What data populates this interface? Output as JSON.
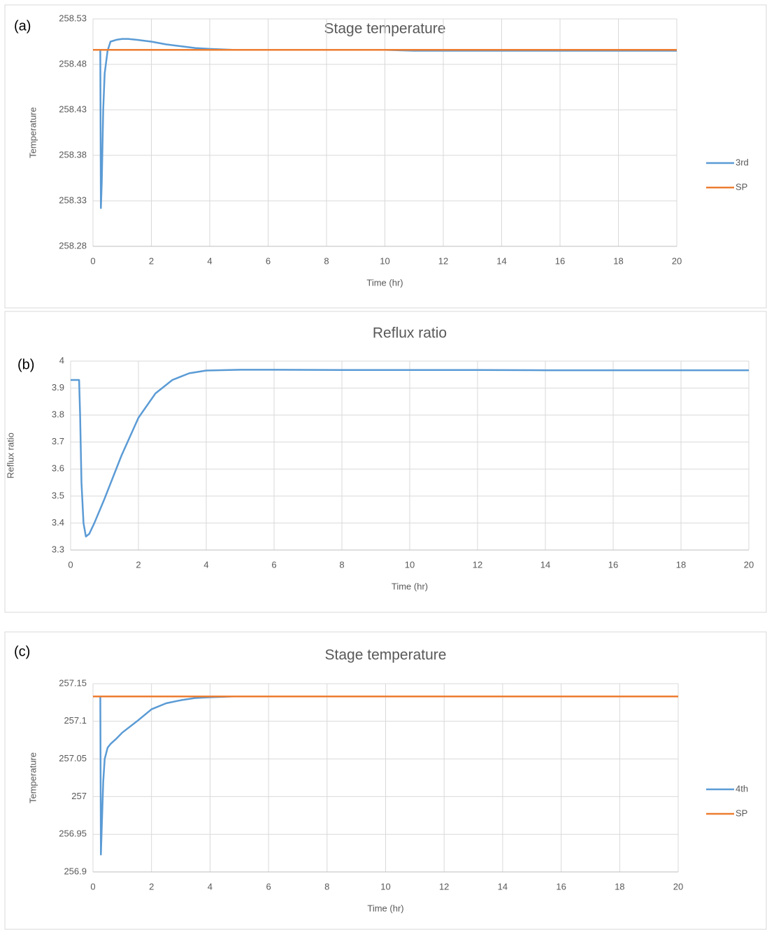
{
  "chart_data": [
    {
      "type": "line",
      "panel_label": "(a)",
      "title": "Stage temperature",
      "xlabel": "Time (hr)",
      "ylabel": "Temperature",
      "x": [
        0,
        0.25,
        0.27,
        0.3,
        0.35,
        0.4,
        0.5,
        0.6,
        0.8,
        1,
        1.2,
        1.5,
        2,
        2.5,
        3,
        3.5,
        4,
        4.8,
        6,
        8,
        10,
        11,
        12,
        14,
        16,
        18,
        20
      ],
      "series": [
        {
          "name": "3rd",
          "color": "#5b9bd5",
          "values": [
            null,
            258.495,
            258.322,
            258.35,
            258.43,
            258.47,
            258.495,
            258.505,
            258.507,
            258.508,
            258.508,
            258.507,
            258.505,
            258.502,
            258.5,
            258.498,
            258.497,
            258.496,
            258.496,
            258.496,
            258.496,
            258.495,
            258.495,
            258.495,
            258.495,
            258.495,
            258.495
          ]
        },
        {
          "name": "SP",
          "color": "#ed7d31",
          "values": [
            258.496,
            258.496,
            258.496,
            258.496,
            258.496,
            258.496,
            258.496,
            258.496,
            258.496,
            258.496,
            258.496,
            258.496,
            258.496,
            258.496,
            258.496,
            258.496,
            258.496,
            258.496,
            258.496,
            258.496,
            258.496,
            258.496,
            258.496,
            258.496,
            258.496,
            258.496,
            258.496
          ]
        }
      ],
      "xlim": [
        0,
        20
      ],
      "xticks": [
        0,
        2,
        4,
        6,
        8,
        10,
        12,
        14,
        16,
        18,
        20
      ],
      "ylim": [
        258.28,
        258.53
      ],
      "yticks": [
        258.28,
        258.33,
        258.38,
        258.43,
        258.48,
        258.53
      ],
      "grid": true,
      "legend": "right"
    },
    {
      "type": "line",
      "panel_label": "(b)",
      "title": "Reflux ratio",
      "xlabel": "Time (hr)",
      "ylabel": "Reflux ratio",
      "x": [
        0,
        0.25,
        0.28,
        0.32,
        0.38,
        0.45,
        0.55,
        0.7,
        1,
        1.5,
        2,
        2.5,
        3,
        3.5,
        4,
        5,
        6,
        8,
        10,
        12,
        14,
        16,
        18,
        20
      ],
      "values": [
        3.93,
        3.93,
        3.8,
        3.55,
        3.4,
        3.35,
        3.36,
        3.4,
        3.49,
        3.65,
        3.79,
        3.88,
        3.93,
        3.955,
        3.965,
        3.968,
        3.968,
        3.967,
        3.967,
        3.967,
        3.966,
        3.966,
        3.966,
        3.966
      ],
      "color": "#5b9bd5",
      "xlim": [
        0,
        20
      ],
      "xticks": [
        0,
        2,
        4,
        6,
        8,
        10,
        12,
        14,
        16,
        18,
        20
      ],
      "ylim": [
        3.3,
        4
      ],
      "yticks": [
        3.3,
        3.4,
        3.5,
        3.6,
        3.7,
        3.8,
        3.9,
        4
      ],
      "grid": true
    },
    {
      "type": "line",
      "panel_label": "(c)",
      "title": "Stage temperature",
      "xlabel": "Time (hr)",
      "ylabel": "Temperature",
      "x": [
        0,
        0.25,
        0.27,
        0.3,
        0.35,
        0.4,
        0.5,
        0.6,
        0.8,
        1,
        1.5,
        2,
        2.5,
        3,
        3.5,
        4,
        4.8,
        6,
        8,
        10,
        12,
        14,
        16,
        18,
        20
      ],
      "series": [
        {
          "name": "4th",
          "color": "#5b9bd5",
          "values": [
            null,
            257.133,
            256.923,
            256.96,
            257.02,
            257.05,
            257.065,
            257.07,
            257.077,
            257.085,
            257.1,
            257.116,
            257.124,
            257.128,
            257.131,
            257.132,
            257.133,
            257.133,
            257.133,
            257.133,
            257.133,
            257.133,
            257.133,
            257.133,
            257.133
          ]
        },
        {
          "name": "SP",
          "color": "#ed7d31",
          "values": [
            257.133,
            257.133,
            257.133,
            257.133,
            257.133,
            257.133,
            257.133,
            257.133,
            257.133,
            257.133,
            257.133,
            257.133,
            257.133,
            257.133,
            257.133,
            257.133,
            257.133,
            257.133,
            257.133,
            257.133,
            257.133,
            257.133,
            257.133,
            257.133,
            257.133
          ]
        }
      ],
      "xlim": [
        0,
        20
      ],
      "xticks": [
        0,
        2,
        4,
        6,
        8,
        10,
        12,
        14,
        16,
        18,
        20
      ],
      "ylim": [
        256.9,
        257.15
      ],
      "yticks": [
        256.9,
        256.95,
        257,
        257.05,
        257.1,
        257.15
      ],
      "grid": true,
      "legend": "right"
    }
  ]
}
